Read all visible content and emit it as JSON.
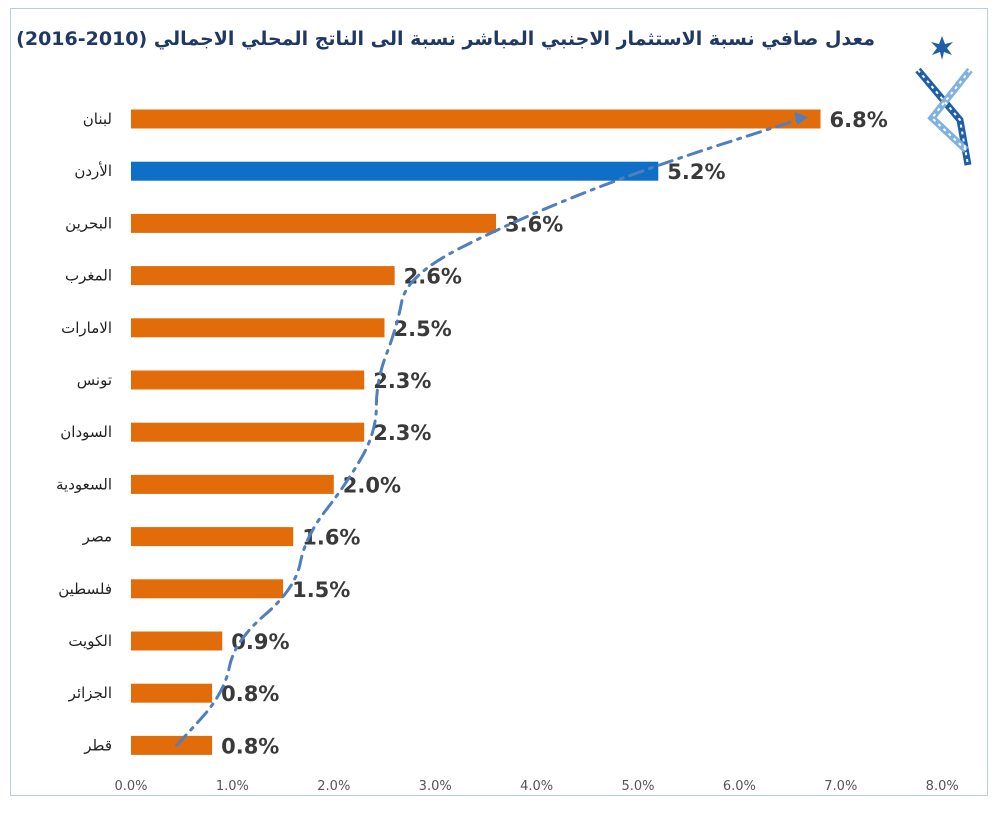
{
  "chart_data": {
    "type": "bar",
    "orientation": "horizontal",
    "title": "معدل صافي نسبة الاستثمار الاجنبي المباشر نسبة الى الناتج المحلي الاجمالي (2010-2016)",
    "categories": [
      "لبنان",
      "الأردن",
      "البحرين",
      "المغرب",
      "الامارات",
      "تونس",
      "السودان",
      "السعودية",
      "مصر",
      "فلسطين",
      "الكويت",
      "الجزائر",
      "قطر"
    ],
    "values": [
      6.8,
      5.2,
      3.6,
      2.6,
      2.5,
      2.3,
      2.3,
      2.0,
      1.6,
      1.5,
      0.9,
      0.8,
      0.8
    ],
    "value_labels": [
      "6.8%",
      "5.2%",
      "3.6%",
      "2.6%",
      "2.5%",
      "2.3%",
      "2.3%",
      "2.0%",
      "1.6%",
      "1.5%",
      "0.9%",
      "0.8%",
      "0.8%"
    ],
    "xlim": [
      0,
      8
    ],
    "x_ticks": [
      "0.0%",
      "1.0%",
      "2.0%",
      "3.0%",
      "4.0%",
      "5.0%",
      "6.0%",
      "7.0%",
      "8.0%"
    ],
    "highlight_category": "الأردن",
    "trendline": "dash-dot",
    "grid": false,
    "colors": {
      "bar": "#e36c0a",
      "highlight": "#0f6fc6",
      "trend": "#4f7fbf",
      "title": "#1f3864"
    }
  }
}
